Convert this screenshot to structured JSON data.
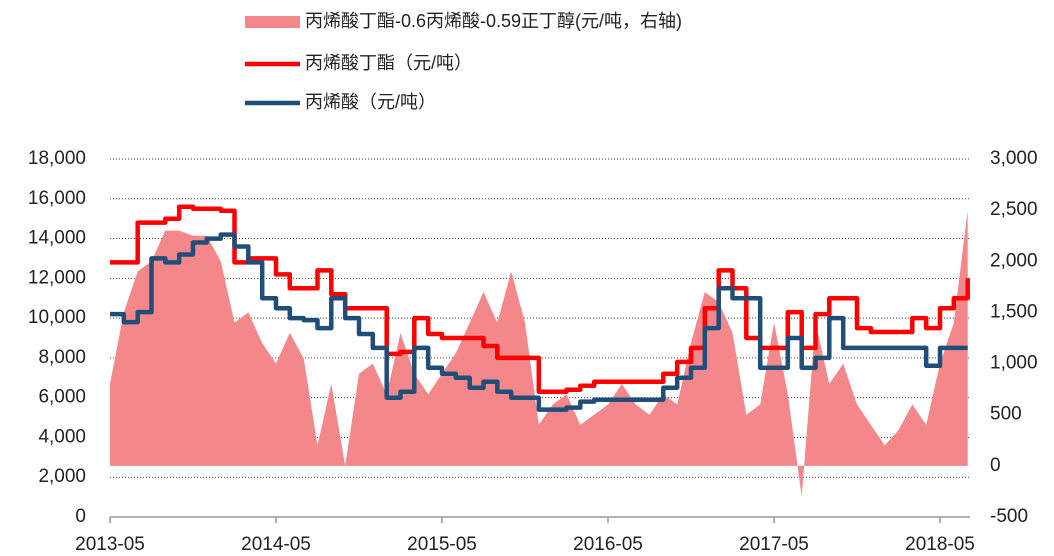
{
  "chart_data": {
    "type": "line",
    "x": [
      "2013-05",
      "2013-06",
      "2013-07",
      "2013-08",
      "2013-09",
      "2013-10",
      "2013-11",
      "2013-12",
      "2014-01",
      "2014-02",
      "2014-03",
      "2014-04",
      "2014-05",
      "2014-06",
      "2014-07",
      "2014-08",
      "2014-09",
      "2014-10",
      "2014-11",
      "2014-12",
      "2015-01",
      "2015-02",
      "2015-03",
      "2015-04",
      "2015-05",
      "2015-06",
      "2015-07",
      "2015-08",
      "2015-09",
      "2015-10",
      "2015-11",
      "2015-12",
      "2016-01",
      "2016-02",
      "2016-03",
      "2016-04",
      "2016-05",
      "2016-06",
      "2016-07",
      "2016-08",
      "2016-09",
      "2016-10",
      "2016-11",
      "2016-12",
      "2017-01",
      "2017-02",
      "2017-03",
      "2017-04",
      "2017-05",
      "2017-06",
      "2017-07",
      "2017-08",
      "2017-09",
      "2017-10",
      "2017-11",
      "2017-12",
      "2018-01",
      "2018-02",
      "2018-03",
      "2018-04",
      "2018-05",
      "2018-06",
      "2018-07"
    ],
    "series": [
      {
        "name": "丙烯酸丁酯-0.6丙烯酸-0.59正丁醇(元/吨，右轴)",
        "type": "area",
        "axis": "y2",
        "color": "#f4878a",
        "values": [
          800,
          1500,
          1900,
          2000,
          2300,
          2300,
          2250,
          2250,
          2000,
          1400,
          1500,
          1200,
          1000,
          1300,
          1050,
          200,
          800,
          0,
          900,
          1000,
          700,
          1300,
          900,
          700,
          900,
          1100,
          1400,
          1700,
          1400,
          1900,
          1400,
          400,
          600,
          700,
          400,
          500,
          600,
          800,
          600,
          500,
          700,
          600,
          1200,
          1700,
          1600,
          1300,
          500,
          600,
          1400,
          700,
          -300,
          1400,
          800,
          1000,
          600,
          400,
          200,
          350,
          600,
          400,
          1000,
          1400,
          2500
        ]
      },
      {
        "name": "丙烯酸丁酯（元/吨）",
        "type": "line",
        "color": "#ff0000",
        "values": [
          12800,
          12800,
          14800,
          14800,
          15000,
          15600,
          15500,
          15500,
          15400,
          12800,
          13000,
          13000,
          12200,
          11500,
          11500,
          12400,
          11200,
          10500,
          10500,
          10500,
          8200,
          8300,
          10000,
          9200,
          9000,
          9000,
          9000,
          8600,
          8000,
          8000,
          8000,
          6300,
          6300,
          6400,
          6600,
          6800,
          6800,
          6800,
          6800,
          6800,
          7200,
          7800,
          8500,
          10500,
          12400,
          11500,
          9000,
          8500,
          8500,
          10300,
          8500,
          10200,
          11000,
          11000,
          9500,
          9300,
          9300,
          9300,
          10000,
          9500,
          10500,
          11000,
          12000
        ]
      },
      {
        "name": "丙烯酸（元/吨）",
        "type": "line",
        "color": "#1f4e79",
        "values": [
          10200,
          9800,
          10300,
          13000,
          12800,
          13200,
          13800,
          14000,
          14200,
          13600,
          12800,
          11000,
          10500,
          10000,
          9900,
          9500,
          11000,
          10000,
          9200,
          8500,
          6000,
          6300,
          8500,
          7500,
          7200,
          7000,
          6500,
          6800,
          6300,
          6000,
          6000,
          5400,
          5400,
          5500,
          5800,
          5900,
          5900,
          5900,
          5900,
          5900,
          6500,
          7000,
          7500,
          9500,
          11500,
          11000,
          11000,
          7500,
          7500,
          9000,
          7500,
          8000,
          10000,
          8500,
          8500,
          8500,
          8500,
          8500,
          8500,
          7600,
          8500,
          8500,
          8500
        ]
      }
    ],
    "xticks": [
      "2013-05",
      "2014-05",
      "2015-05",
      "2016-05",
      "2017-05",
      "2018-05"
    ],
    "ylim": [
      0,
      18000
    ],
    "yticks": [
      0,
      {
        "value": 2000,
        "label": "2,000"
      },
      {
        "value": 4000,
        "label": "4,000"
      },
      {
        "value": 6000,
        "label": "6,000"
      },
      {
        "value": 8000,
        "label": "8,000"
      },
      {
        "value": 10000,
        "label": "10,000"
      },
      {
        "value": 12000,
        "label": "12,000"
      },
      {
        "value": 14000,
        "label": "14,000"
      },
      {
        "value": 16000,
        "label": "16,000"
      },
      {
        "value": 18000,
        "label": "18,000"
      }
    ],
    "y2lim": [
      -500,
      3000
    ],
    "y2ticks": [
      -500,
      0,
      500,
      {
        "value": 1000,
        "label": "1,000"
      },
      {
        "value": 1500,
        "label": "1,500"
      },
      {
        "value": 2000,
        "label": "2,000"
      },
      {
        "value": 2500,
        "label": "2,500"
      },
      {
        "value": 3000,
        "label": "3,000"
      }
    ],
    "grid": true
  }
}
